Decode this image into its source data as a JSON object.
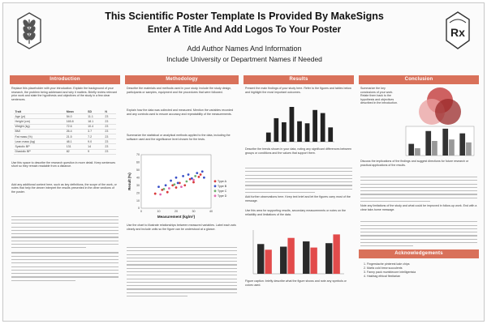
{
  "header": {
    "title_line1": "This Scientific Poster Template Is Provided By MakeSigns",
    "title_line2": "Enter A Title And Add Logos To Your Poster",
    "authors": "Add Author Names And Information",
    "departments": "Include University or Department Names if Needed"
  },
  "logos": {
    "left_icon": "wheat-emblem-icon",
    "right_icon": "rx-prescription-icon",
    "right_text": "Rx"
  },
  "colors": {
    "section_bar": "#d9715a",
    "series_type_a": "#d93b3b",
    "series_type_b": "#3a50c8",
    "series_type_c": "#6fb06f",
    "series_type_d": "#e06ab0",
    "venn_top": "#c64545",
    "venn_left": "#e9a0a0",
    "venn_right": "#9a2a2a"
  },
  "sections": {
    "introduction": {
      "heading": "Introduction",
      "para1": "Replace this placeholder with your introduction. Explain the background of your research, the problem being addressed and why it matters. Briefly review relevant prior work and state the hypothesis and objectives of the study in a few clear sentences.",
      "para2": "Use this space to describe the research question in more detail. Keep sentences short so they remain readable from a distance.",
      "para3": "Add any additional context here, such as key definitions, the scope of the work, or notes that help the viewer interpret the results presented in the other sections of the poster."
    },
    "methodology": {
      "heading": "Methodology",
      "para1": "Describe the materials and methods used in your study. Include the study design, participants or samples, equipment and the procedures that were followed.",
      "para2": "Explain how the data was collected and measured. Mention the variables recorded and any controls used to ensure accuracy and repeatability of the measurements.",
      "para3": "Summarize the statistical or analytical methods applied to the data, including the software used and the significance level chosen for the tests.",
      "para4": "Use the chart to illustrate relationships between measured variables. Label each axis clearly and include units so the figure can be understood at a glance."
    },
    "results": {
      "heading": "Results",
      "para1": "Present the main findings of your study here. Refer to the figures and tables below and highlight the most important outcomes.",
      "para2": "Describe the trends shown in your data, noting any significant differences between groups or conditions and the values that support them.",
      "para3": "Add further observations here. Keep text brief and let the figures carry most of the message.",
      "para4": "Use this area for supporting results, secondary measurements or notes on the reliability and limitations of the data.",
      "para5": "Figure caption: briefly describe what the figure shows and note any symbols or colors used."
    },
    "conclusion": {
      "heading": "Conclusion",
      "para1": "Summarize the key conclusions of your work. Relate them back to the hypothesis and objectives described in the introduction.",
      "para2": "Discuss the implications of the findings and suggest directions for future research or practical applications of the results.",
      "para3": "Note any limitations of the study and what could be improved in follow-up work. End with a clear take-home message."
    },
    "acknowledgements": {
      "heading": "Acknowledgements",
      "items": [
        "1.  Fingerstache pinterest kale chips",
        "2.  Marfa cold brew succulents",
        "3.  Fanny pack mumblecore intelligentsia",
        "4.  Hashtag ethical flexitarian"
      ]
    }
  },
  "intro_table": {
    "columns": [
      "Trait",
      "Mean",
      "SD",
      "N"
    ],
    "rows": [
      [
        "Age (yr)",
        "54.0",
        "11.1",
        "23"
      ],
      [
        "Height (cm)",
        "165.8",
        "18.1",
        "23"
      ],
      [
        "Weight (kg)",
        "72.6",
        "10.4",
        "23"
      ],
      [
        "BMI",
        "26.4",
        "3.7",
        "23"
      ],
      [
        "Fat mass (%)",
        "21.5",
        "7.2",
        "23"
      ],
      [
        "Lean mass (kg)",
        "48.1",
        "9.0",
        "23"
      ],
      [
        "Systolic BP",
        "131",
        "14",
        "23"
      ],
      [
        "Diastolic BP",
        "82",
        "9",
        "23"
      ]
    ]
  },
  "chart_data": [
    {
      "type": "scatter",
      "xlabel": "Measurement (kg/m²)",
      "ylabel": "Result (%)",
      "xlim": [
        0,
        40
      ],
      "ylim": [
        0,
        70
      ],
      "x_ticks": [
        0,
        10,
        20,
        30,
        40
      ],
      "y_ticks": [
        0,
        10,
        20,
        30,
        40,
        50,
        60,
        70
      ],
      "legend_position": "right",
      "series": [
        {
          "name": "Type A",
          "color": "#d93b3b",
          "points": [
            [
              8,
              19
            ],
            [
              12,
              24
            ],
            [
              15,
              21
            ],
            [
              18,
              30
            ],
            [
              20,
              27
            ],
            [
              22,
              33
            ],
            [
              25,
              30
            ],
            [
              28,
              38
            ],
            [
              30,
              34
            ],
            [
              33,
              41
            ],
            [
              34,
              44
            ]
          ]
        },
        {
          "name": "Type B",
          "color": "#3a50c8",
          "points": [
            [
              10,
              28
            ],
            [
              14,
              30
            ],
            [
              17,
              36
            ],
            [
              20,
              40
            ],
            [
              21,
              33
            ],
            [
              24,
              42
            ],
            [
              27,
              44
            ],
            [
              29,
              39
            ],
            [
              32,
              46
            ],
            [
              35,
              48
            ],
            [
              36,
              40
            ]
          ]
        },
        {
          "name": "Type C",
          "color": "#6fb06f",
          "points": [
            [
              13,
              25
            ],
            [
              19,
              31
            ],
            [
              26,
              35
            ],
            [
              31,
              42
            ]
          ]
        },
        {
          "name": "Type D",
          "color": "#e06ab0",
          "points": [
            [
              11,
              18
            ],
            [
              16,
              26
            ],
            [
              23,
              28
            ],
            [
              30,
              37
            ]
          ]
        }
      ]
    },
    {
      "type": "bar",
      "categories": [
        "1",
        "2",
        "3",
        "4",
        "5",
        "6",
        "7",
        "8",
        "9"
      ],
      "values": [
        9,
        23,
        19,
        34,
        20,
        18,
        31,
        28,
        14
      ],
      "color": "#222222"
    },
    {
      "type": "bar",
      "categories": [
        "A",
        "B",
        "C",
        "D"
      ],
      "series": [
        {
          "values": [
            68,
            62,
            74,
            70
          ],
          "color": "#2a2a2a"
        },
        {
          "values": [
            55,
            82,
            60,
            90
          ],
          "color": "#e24b4b"
        }
      ],
      "ylim": [
        0,
        100
      ]
    },
    {
      "type": "bar",
      "categories": [
        "1",
        "2",
        "3",
        "4"
      ],
      "series": [
        {
          "values": [
            40,
            84,
            92,
            76
          ],
          "color": "#333333"
        },
        {
          "values": [
            25,
            50,
            55,
            45
          ],
          "color": "#999999"
        }
      ],
      "ylim": [
        0,
        100
      ]
    }
  ]
}
